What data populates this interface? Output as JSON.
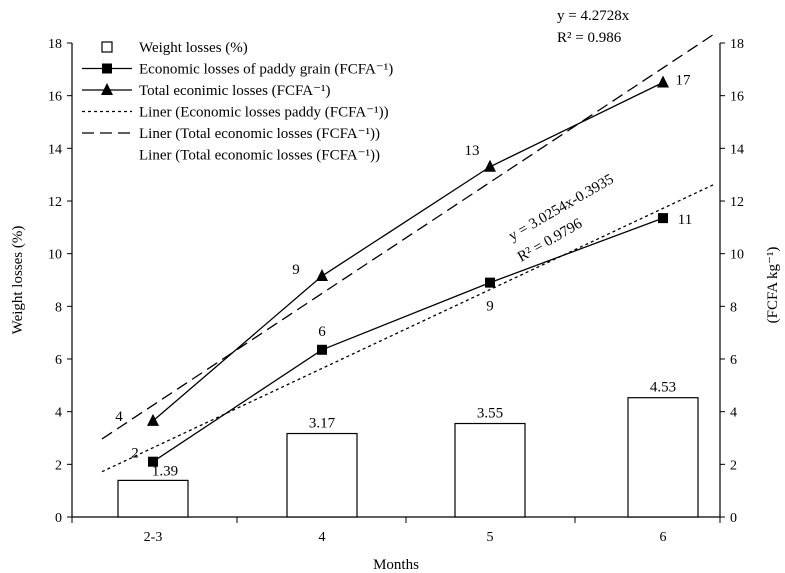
{
  "chart_data": {
    "type": "bar",
    "categories": [
      "2-3",
      "4",
      "5",
      "6"
    ],
    "xlabel": "Months",
    "ylabel_left": "Weight losses (%)",
    "ylabel_right": "(FCFA kg⁻¹)",
    "ylim_left": [
      0,
      18
    ],
    "ylim_right": [
      0,
      18
    ],
    "yticks": [
      0,
      2,
      4,
      6,
      8,
      10,
      12,
      14,
      16,
      18
    ],
    "grid": false,
    "legend_position": "top-left",
    "bars": {
      "name": "Weight losses (%)",
      "values": [
        1.39,
        3.17,
        3.55,
        4.53
      ],
      "labels": [
        "1.39",
        "3.17",
        "3.55",
        "4.53"
      ]
    },
    "series": [
      {
        "name": "Economic losses of paddy grain (FCFA⁻¹)",
        "marker": "square",
        "values": [
          2.1,
          6.35,
          8.9,
          11.35
        ],
        "labels": [
          "2",
          "6",
          "9",
          "11"
        ]
      },
      {
        "name": "Total econimic losses (FCFA⁻¹)",
        "marker": "triangle",
        "values": [
          3.65,
          9.15,
          13.3,
          16.5
        ],
        "labels": [
          "4",
          "9",
          "13",
          "17"
        ]
      }
    ],
    "trendlines": [
      {
        "name": "Liner (Economic losses paddy (FCFA⁻¹))",
        "style": "dotted",
        "equation": "y = 3.0254x-0.3935",
        "r2": "R² = 0.9796"
      },
      {
        "name": "Liner (Total economic losses (FCFA⁻¹))",
        "style": "dashed",
        "equation": "y = 4.2728x",
        "r2": "R² = 0.986"
      }
    ]
  }
}
